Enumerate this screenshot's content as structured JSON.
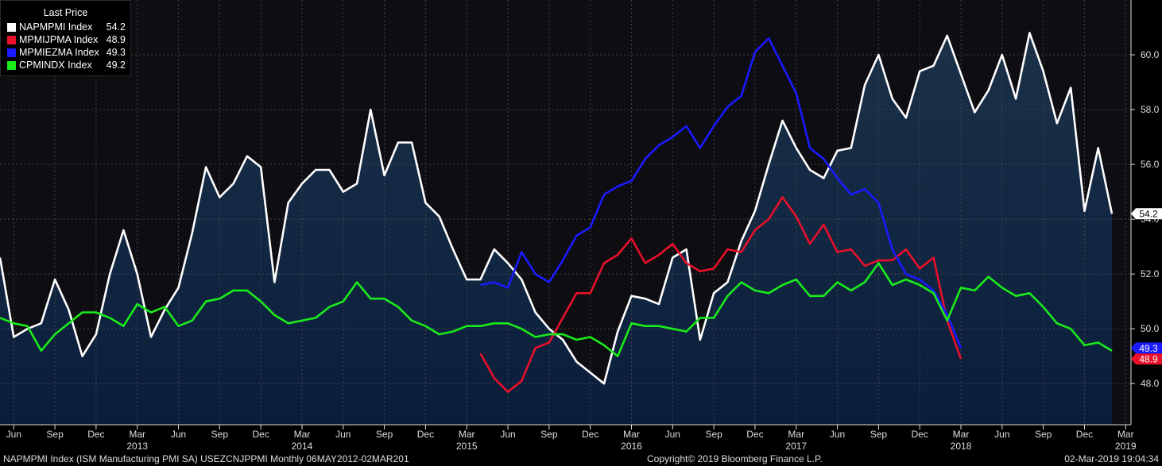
{
  "legend": {
    "header": "Last Price"
  },
  "footer": {
    "left": "NAPMPMI Index (ISM Manufacturing PMI SA) USEZCNJPPMI  Monthly 06MAY2012-02MAR201",
    "center": "Copyright© 2019 Bloomberg Finance L.P.",
    "right": "02-Mar-2019 19:04:34"
  },
  "colors": {
    "background": "#0d0d12",
    "area_top": "#1b3148",
    "area_bottom": "#0a1e3c"
  },
  "chart_data": {
    "type": "line",
    "x_start": "2012-05",
    "x_end": "2019-02",
    "ylim": [
      46.5,
      62
    ],
    "y_ticks": [
      "48.0",
      "50.0",
      "52.0",
      "54.0",
      "56.0",
      "58.0",
      "60.0"
    ],
    "x_tick_months": [
      "Jun",
      "Sep",
      "Dec",
      "Mar",
      "Jun",
      "Sep",
      "Dec",
      "Mar",
      "Jun",
      "Sep",
      "Dec",
      "Mar",
      "Jun",
      "Sep",
      "Dec",
      "Mar",
      "Jun",
      "Sep",
      "Dec",
      "Mar",
      "Jun",
      "Sep",
      "Dec",
      "Mar",
      "Jun",
      "Sep",
      "Dec",
      "Mar"
    ],
    "x_tick_years": [
      "2012",
      "2013",
      "2014",
      "2015",
      "2016",
      "2017",
      "2018",
      "2019"
    ],
    "series": [
      {
        "name": "NAPMPMI Index",
        "last": "54.2",
        "color": "#ffffff",
        "area": true,
        "start": "2012-05",
        "values": [
          52.6,
          49.7,
          50.0,
          50.2,
          51.8,
          50.7,
          49.0,
          49.8,
          52.0,
          53.6,
          52.0,
          49.7,
          50.7,
          51.5,
          53.5,
          55.9,
          54.8,
          55.3,
          56.3,
          55.9,
          51.7,
          54.6,
          55.3,
          55.8,
          55.8,
          55.0,
          55.3,
          58.0,
          55.6,
          56.8,
          56.8,
          54.6,
          54.1,
          52.9,
          51.8,
          51.8,
          52.9,
          52.4,
          51.8,
          50.6,
          50.0,
          49.6,
          48.8,
          48.4,
          48.0,
          49.9,
          51.2,
          51.1,
          50.9,
          52.6,
          52.9,
          49.6,
          51.3,
          51.7,
          53.2,
          54.3,
          56.0,
          57.6,
          56.6,
          55.8,
          55.5,
          56.5,
          56.6,
          58.9,
          60.0,
          58.4,
          57.7,
          59.4,
          59.6,
          60.7,
          59.3,
          57.9,
          58.7,
          60.0,
          58.4,
          60.8,
          59.4,
          57.5,
          58.8,
          54.3,
          56.6,
          54.2
        ]
      },
      {
        "name": "MPMIJPMA Index",
        "last": "48.9",
        "color": "#e8102a",
        "area": false,
        "start": "2015-04",
        "values": [
          49.1,
          48.2,
          47.7,
          48.1,
          49.3,
          49.5,
          50.4,
          51.3,
          51.3,
          52.4,
          52.7,
          53.3,
          52.4,
          52.7,
          53.1,
          52.4,
          52.1,
          52.2,
          52.9,
          52.8,
          53.6,
          54.0,
          54.8,
          54.1,
          53.1,
          53.8,
          52.8,
          52.9,
          52.3,
          52.5,
          52.5,
          52.9,
          52.2,
          52.6,
          50.3,
          48.9
        ]
      },
      {
        "name": "MPMIEZMA Index",
        "last": "49.3",
        "color": "#1a1aff",
        "area": false,
        "start": "2015-04",
        "values": [
          51.6,
          51.7,
          51.5,
          52.8,
          52.0,
          51.7,
          52.5,
          53.4,
          53.7,
          54.9,
          55.2,
          55.4,
          56.2,
          56.7,
          57.0,
          57.4,
          56.6,
          57.4,
          58.1,
          58.5,
          60.1,
          60.6,
          59.6,
          58.6,
          56.6,
          56.2,
          55.5,
          54.9,
          55.1,
          54.6,
          52.9,
          52.0,
          51.8,
          51.4,
          50.5,
          49.3
        ]
      },
      {
        "name": "CPMINDX Index",
        "last": "49.2",
        "color": "#1aeb1a",
        "area": false,
        "start": "2012-05",
        "values": [
          50.4,
          50.2,
          50.1,
          49.2,
          49.8,
          50.2,
          50.6,
          50.6,
          50.4,
          50.1,
          50.9,
          50.6,
          50.8,
          50.1,
          50.3,
          51.0,
          51.1,
          51.4,
          51.4,
          51.0,
          50.5,
          50.2,
          50.3,
          50.4,
          50.8,
          51.0,
          51.7,
          51.1,
          51.1,
          50.8,
          50.3,
          50.1,
          49.8,
          49.9,
          50.1,
          50.1,
          50.2,
          50.2,
          50.0,
          49.7,
          49.8,
          49.8,
          49.6,
          49.7,
          49.4,
          49.0,
          50.2,
          50.1,
          50.1,
          50.0,
          49.9,
          50.4,
          50.4,
          51.2,
          51.7,
          51.4,
          51.3,
          51.6,
          51.8,
          51.2,
          51.2,
          51.7,
          51.4,
          51.7,
          52.4,
          51.6,
          51.8,
          51.6,
          51.3,
          50.3,
          51.5,
          51.4,
          51.9,
          51.5,
          51.2,
          51.3,
          50.8,
          50.2,
          50.0,
          49.4,
          49.5,
          49.2
        ]
      }
    ]
  }
}
